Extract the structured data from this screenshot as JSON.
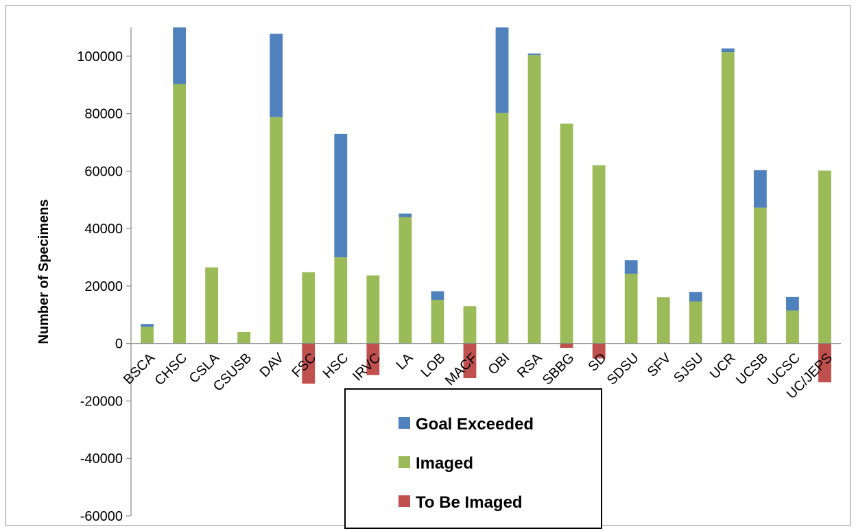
{
  "chart_data": {
    "type": "bar",
    "stacked": true,
    "title": "",
    "xlabel": "",
    "ylabel": "Number of Specimens",
    "ylim": [
      -60000,
      110000
    ],
    "yticks": [
      -60000,
      -40000,
      -20000,
      0,
      20000,
      40000,
      60000,
      80000,
      100000
    ],
    "ytick_labels": [
      "-60000",
      "-40000",
      "-20000",
      "0",
      "20000",
      "40000",
      "60000",
      "80000",
      "100000"
    ],
    "grid": false,
    "legend_position": "bottom-center",
    "categories": [
      "BSCA",
      "CHSC",
      "CSLA",
      "CSUSB",
      "DAV",
      "FSC",
      "HSC",
      "IRVC",
      "LA",
      "LOB",
      "MACF",
      "OBI",
      "RSA",
      "SBBG",
      "SD",
      "SDSU",
      "SFV",
      "SJSU",
      "UCR",
      "UCSB",
      "UCSC",
      "UC/JEPS"
    ],
    "series": [
      {
        "name": "Goal Exceeded",
        "color": "#4f81bd",
        "values": [
          1000,
          20000,
          0,
          0,
          29000,
          0,
          43000,
          0,
          1200,
          3000,
          0,
          30000,
          500,
          0,
          0,
          4700,
          0,
          3300,
          1300,
          13000,
          4700,
          0
        ]
      },
      {
        "name": "Imaged",
        "color": "#9bbb59",
        "values": [
          5800,
          90300,
          26500,
          4000,
          78800,
          24800,
          30000,
          23700,
          44000,
          15200,
          13000,
          80200,
          100400,
          76500,
          62000,
          24300,
          16100,
          14600,
          101400,
          47300,
          11500,
          60200
        ]
      },
      {
        "name": "To Be Imaged",
        "color": "#c0504d",
        "values": [
          0,
          0,
          0,
          0,
          0,
          -14000,
          0,
          -11000,
          0,
          0,
          -12000,
          0,
          0,
          -1500,
          -5200,
          0,
          0,
          0,
          0,
          0,
          0,
          -13500
        ]
      }
    ]
  }
}
